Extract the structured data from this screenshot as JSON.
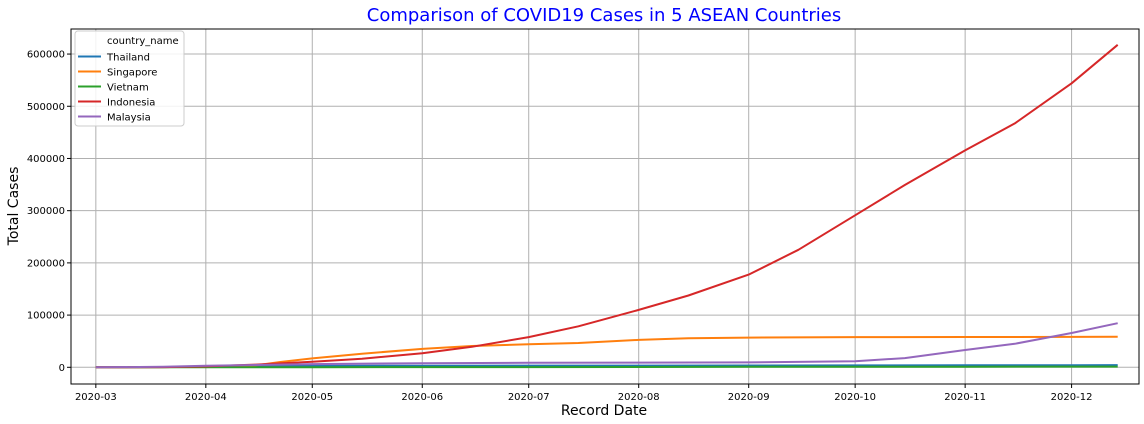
{
  "chart_data": {
    "type": "line",
    "title": "Comparison of COVID19 Cases in 5 ASEAN Countries",
    "title_color": "#0000ff",
    "xlabel": "Record Date",
    "ylabel": "Total Cases",
    "grid": true,
    "legend_placement": "top-left",
    "legend_title": "country_name",
    "x_tick_labels": [
      "2020-03",
      "2020-04",
      "2020-05",
      "2020-06",
      "2020-07",
      "2020-08",
      "2020-09",
      "2020-10",
      "2020-11",
      "2020-12"
    ],
    "y_ticks": [
      0,
      100000,
      200000,
      300000,
      400000,
      500000,
      600000
    ],
    "xlim": [
      "2020-02-23",
      "2020-12-20"
    ],
    "ylim": [
      -32000,
      648000
    ],
    "series": [
      {
        "name": "Thailand",
        "color": "#1f77b4",
        "points": [
          [
            "2020-03-01",
            42
          ],
          [
            "2020-03-20",
            322
          ],
          [
            "2020-04-01",
            1771
          ],
          [
            "2020-05-01",
            2954
          ],
          [
            "2020-06-01",
            3081
          ],
          [
            "2020-07-01",
            3173
          ],
          [
            "2020-08-01",
            3317
          ],
          [
            "2020-09-01",
            3411
          ],
          [
            "2020-10-01",
            3575
          ],
          [
            "2020-11-01",
            3780
          ],
          [
            "2020-12-01",
            4008
          ],
          [
            "2020-12-14",
            4246
          ]
        ]
      },
      {
        "name": "Singapore",
        "color": "#ff7f0e",
        "points": [
          [
            "2020-03-01",
            106
          ],
          [
            "2020-03-20",
            385
          ],
          [
            "2020-04-01",
            1000
          ],
          [
            "2020-04-15",
            3699
          ],
          [
            "2020-04-22",
            10141
          ],
          [
            "2020-05-01",
            17101
          ],
          [
            "2020-05-15",
            26098
          ],
          [
            "2020-06-01",
            35292
          ],
          [
            "2020-06-15",
            40818
          ],
          [
            "2020-07-01",
            44122
          ],
          [
            "2020-07-15",
            46630
          ],
          [
            "2020-08-01",
            52512
          ],
          [
            "2020-08-15",
            55497
          ],
          [
            "2020-09-01",
            56908
          ],
          [
            "2020-10-01",
            57794
          ],
          [
            "2020-11-01",
            58019
          ],
          [
            "2020-12-01",
            58218
          ],
          [
            "2020-12-14",
            58320
          ]
        ]
      },
      {
        "name": "Vietnam",
        "color": "#2ca02c",
        "points": [
          [
            "2020-03-01",
            16
          ],
          [
            "2020-03-20",
            87
          ],
          [
            "2020-04-01",
            218
          ],
          [
            "2020-05-01",
            270
          ],
          [
            "2020-06-01",
            328
          ],
          [
            "2020-07-01",
            355
          ],
          [
            "2020-08-01",
            590
          ],
          [
            "2020-09-01",
            1044
          ],
          [
            "2020-10-01",
            1098
          ],
          [
            "2020-11-01",
            1180
          ],
          [
            "2020-12-01",
            1347
          ],
          [
            "2020-12-14",
            1402
          ]
        ]
      },
      {
        "name": "Indonesia",
        "color": "#d62728",
        "points": [
          [
            "2020-03-01",
            2
          ],
          [
            "2020-03-20",
            369
          ],
          [
            "2020-04-01",
            1677
          ],
          [
            "2020-04-15",
            5136
          ],
          [
            "2020-05-01",
            10551
          ],
          [
            "2020-05-15",
            16496
          ],
          [
            "2020-06-01",
            26940
          ],
          [
            "2020-06-15",
            39294
          ],
          [
            "2020-07-01",
            57770
          ],
          [
            "2020-07-15",
            78572
          ],
          [
            "2020-08-01",
            109936
          ],
          [
            "2020-08-15",
            137468
          ],
          [
            "2020-09-01",
            177571
          ],
          [
            "2020-09-15",
            225030
          ],
          [
            "2020-10-01",
            291182
          ],
          [
            "2020-10-15",
            349160
          ],
          [
            "2020-11-01",
            415402
          ],
          [
            "2020-11-15",
            467113
          ],
          [
            "2020-12-01",
            543975
          ],
          [
            "2020-12-14",
            617820
          ]
        ]
      },
      {
        "name": "Malaysia",
        "color": "#9467bd",
        "points": [
          [
            "2020-03-01",
            29
          ],
          [
            "2020-03-20",
            1030
          ],
          [
            "2020-04-01",
            2908
          ],
          [
            "2020-05-01",
            6071
          ],
          [
            "2020-06-01",
            7857
          ],
          [
            "2020-07-01",
            8640
          ],
          [
            "2020-08-01",
            8976
          ],
          [
            "2020-09-01",
            9354
          ],
          [
            "2020-10-01",
            11484
          ],
          [
            "2020-10-15",
            17540
          ],
          [
            "2020-11-01",
            33095
          ],
          [
            "2020-11-15",
            45095
          ],
          [
            "2020-12-01",
            65697
          ],
          [
            "2020-12-14",
            84369
          ]
        ]
      }
    ]
  }
}
